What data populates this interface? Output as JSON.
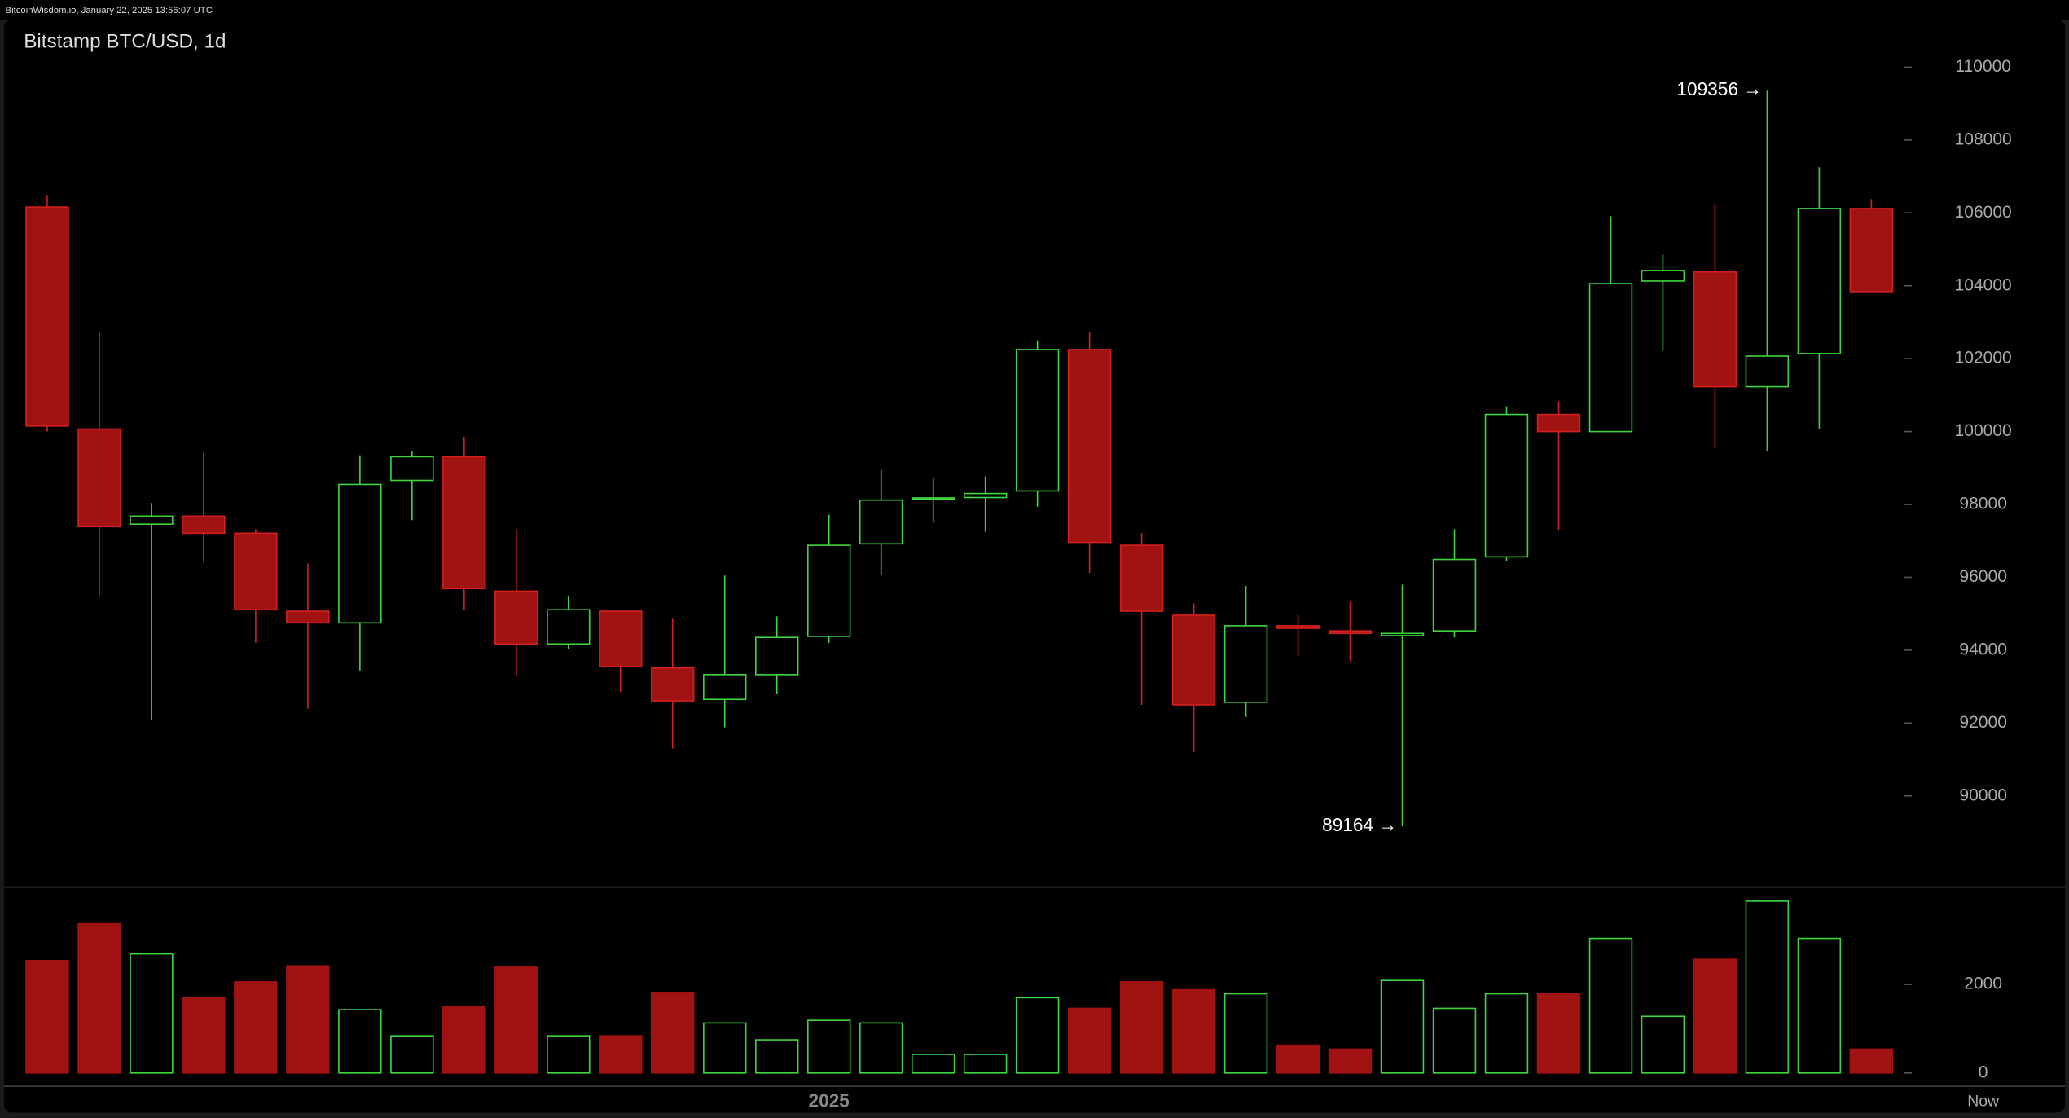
{
  "chart_data": {
    "type": "candlestick",
    "header": "BitcoinWisdom.io, January 22, 2025 13:56:07 UTC",
    "title": "Bitstamp BTC/USD, 1d",
    "categories": [
      null,
      null,
      null,
      null,
      null,
      null,
      null,
      null,
      null,
      null,
      null,
      null,
      null,
      null,
      null,
      "2025",
      null,
      null,
      null,
      null,
      null,
      null,
      null,
      null,
      null,
      null,
      null,
      null,
      null,
      null,
      null,
      null,
      null,
      null,
      null,
      null
    ],
    "now_label": "Now",
    "open": [
      106160,
      100070,
      97460,
      97680,
      97210,
      95070,
      94750,
      98660,
      99310,
      95620,
      94170,
      95070,
      93510,
      92650,
      93330,
      94380,
      96920,
      98150,
      98190,
      98370,
      102250,
      96880,
      94960,
      92570,
      94670,
      94530,
      94400,
      94530,
      96560,
      100470,
      100000,
      104130,
      104380,
      101230,
      102140,
      106120
    ],
    "high": [
      106490,
      102720,
      98040,
      99420,
      97320,
      96380,
      99350,
      99460,
      99860,
      97320,
      95470,
      95070,
      94860,
      96050,
      94930,
      97720,
      98950,
      98730,
      98770,
      102500,
      102720,
      97210,
      95290,
      95760,
      94960,
      95330,
      95800,
      97320,
      100690,
      100830,
      105910,
      104860,
      106270,
      109356,
      107250,
      106380
    ],
    "low": [
      100000,
      95510,
      92100,
      96410,
      94200,
      92390,
      93440,
      97570,
      95110,
      93300,
      94020,
      92860,
      91300,
      91880,
      92790,
      94200,
      96050,
      97500,
      97250,
      97940,
      96120,
      92500,
      91200,
      92170,
      93840,
      93700,
      89164,
      94350,
      96450,
      97280,
      100000,
      102210,
      99530,
      99460,
      100070,
      103840
    ],
    "close": [
      100150,
      97390,
      97680,
      97210,
      95110,
      94750,
      98550,
      99310,
      95690,
      94170,
      95110,
      93550,
      92610,
      93330,
      94350,
      96880,
      98120,
      98180,
      98300,
      102250,
      96960,
      95070,
      92500,
      94670,
      94600,
      94460,
      94460,
      96490,
      100470,
      100000,
      104060,
      104420,
      101230,
      102070,
      106120,
      103840
    ],
    "volume": [
      2540,
      3370,
      2690,
      1700,
      2060,
      2420,
      1430,
      840,
      1490,
      2390,
      840,
      840,
      1820,
      1130,
      750,
      1190,
      1130,
      420,
      420,
      1700,
      1460,
      2060,
      1880,
      1790,
      630,
      540,
      2090,
      1460,
      1790,
      1790,
      3040,
      1280,
      2570,
      3880,
      3040,
      540
    ],
    "high_label": "109356 →",
    "low_label": "89164 →",
    "ylim": [
      87500,
      111300
    ],
    "yticks": [
      90000,
      92000,
      94000,
      96000,
      98000,
      100000,
      102000,
      104000,
      106000,
      108000,
      110000
    ],
    "volume_ylim": [
      -300,
      4200
    ],
    "volume_yticks": [
      0,
      2000
    ],
    "up_color": "#3fd43f",
    "down_color": "#a11212",
    "down_edge": "#d22020"
  }
}
